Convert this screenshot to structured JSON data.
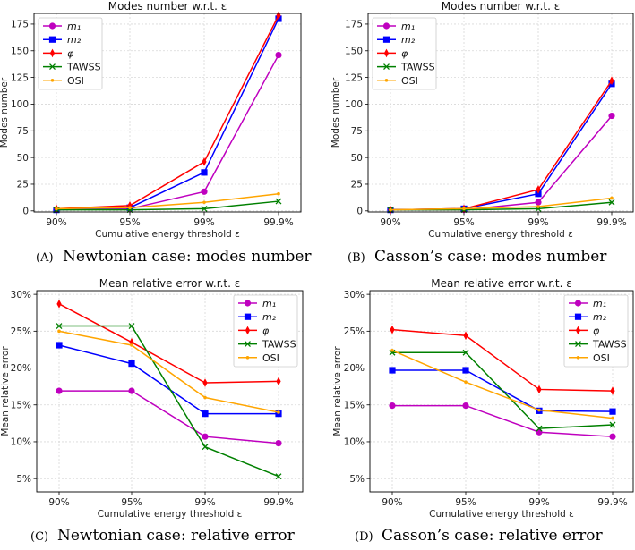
{
  "figure": {
    "panels": [
      {
        "caption_label": "(A)",
        "caption_text": "Newtonian case: modes number"
      },
      {
        "caption_label": "(B)",
        "caption_text": "Casson’s case: modes number"
      },
      {
        "caption_label": "(C)",
        "caption_text": "Newtonian case: relative error"
      },
      {
        "caption_label": "(D)",
        "caption_text": "Casson’s case: relative error"
      }
    ],
    "series_styles": [
      {
        "name": "m₁",
        "color": "#bf00bf",
        "marker": "circle"
      },
      {
        "name": "m₂",
        "color": "#0000ff",
        "marker": "square"
      },
      {
        "name": "φ",
        "color": "#ff0000",
        "marker": "thin-diamond"
      },
      {
        "name": "TAWSS",
        "color": "#008000",
        "marker": "x"
      },
      {
        "name": "OSI",
        "color": "#ffa500",
        "marker": "point"
      }
    ]
  },
  "chart_data": [
    {
      "type": "line",
      "title": "Modes number w.r.t. ε",
      "xlabel": "Cumulative energy threshold ε",
      "ylabel": "Modes number",
      "categories": [
        "90%",
        "95%",
        "99%",
        "99.9%"
      ],
      "yticks": [
        "0",
        "25",
        "50",
        "75",
        "100",
        "125",
        "150",
        "175"
      ],
      "ytick_values": [
        0,
        25,
        50,
        75,
        100,
        125,
        150,
        175
      ],
      "ylim": [
        -1,
        185
      ],
      "grid": true,
      "legend": "upper-left",
      "series": [
        {
          "name": "m₁",
          "values": [
            1,
            2,
            18,
            146
          ]
        },
        {
          "name": "m₂",
          "values": [
            1,
            3,
            36,
            180
          ]
        },
        {
          "name": "φ",
          "values": [
            2,
            5,
            46,
            183
          ]
        },
        {
          "name": "TAWSS",
          "values": [
            1,
            1,
            2,
            9
          ]
        },
        {
          "name": "OSI",
          "values": [
            2,
            3,
            8,
            16
          ]
        }
      ]
    },
    {
      "type": "line",
      "title": "Modes number w.r.t. ε",
      "xlabel": "Cumulative energy threshold ε",
      "ylabel": "Modes number",
      "categories": [
        "90%",
        "95%",
        "99%",
        "99.9%"
      ],
      "yticks": [
        "0",
        "25",
        "50",
        "75",
        "100",
        "125",
        "150",
        "175"
      ],
      "ytick_values": [
        0,
        25,
        50,
        75,
        100,
        125,
        150,
        175
      ],
      "ylim": [
        -1,
        185
      ],
      "grid": true,
      "legend": "upper-left",
      "series": [
        {
          "name": "m₁",
          "values": [
            1,
            1,
            8,
            89
          ]
        },
        {
          "name": "m₂",
          "values": [
            1,
            2,
            16,
            119
          ]
        },
        {
          "name": "φ",
          "values": [
            1,
            2,
            20,
            122
          ]
        },
        {
          "name": "TAWSS",
          "values": [
            1,
            1,
            2,
            8
          ]
        },
        {
          "name": "OSI",
          "values": [
            1,
            2,
            4,
            12
          ]
        }
      ]
    },
    {
      "type": "line",
      "title": "Mean relative error w.r.t. ε",
      "xlabel": "Cumulative energy threshold ε",
      "ylabel": "Mean relative error",
      "categories": [
        "90%",
        "95%",
        "99%",
        "99.9%"
      ],
      "yticks": [
        "5%",
        "10%",
        "15%",
        "20%",
        "25%",
        "30%"
      ],
      "ytick_values": [
        5,
        10,
        15,
        20,
        25,
        30
      ],
      "ylim": [
        3.2,
        30.5
      ],
      "grid": true,
      "legend": "upper-right",
      "series": [
        {
          "name": "m₁",
          "values": [
            16.9,
            16.9,
            10.7,
            9.8
          ]
        },
        {
          "name": "m₂",
          "values": [
            23.1,
            20.6,
            13.8,
            13.8
          ]
        },
        {
          "name": "φ",
          "values": [
            28.7,
            23.5,
            18.0,
            18.2
          ]
        },
        {
          "name": "TAWSS",
          "values": [
            25.7,
            25.7,
            9.3,
            5.3
          ]
        },
        {
          "name": "OSI",
          "values": [
            25.0,
            23.1,
            16.0,
            14.0
          ]
        }
      ]
    },
    {
      "type": "line",
      "title": "Mean relative error w.r.t. ε",
      "xlabel": "Cumulative energy threshold ε",
      "ylabel": "Mean relative error",
      "categories": [
        "90%",
        "95%",
        "99%",
        "99.9%"
      ],
      "yticks": [
        "5%",
        "10%",
        "15%",
        "20%",
        "25%",
        "30%"
      ],
      "ytick_values": [
        5,
        10,
        15,
        20,
        25,
        30
      ],
      "ylim": [
        3.2,
        30.5
      ],
      "grid": true,
      "legend": "upper-right",
      "series": [
        {
          "name": "m₁",
          "values": [
            14.9,
            14.9,
            11.3,
            10.7
          ]
        },
        {
          "name": "m₂",
          "values": [
            19.7,
            19.7,
            14.2,
            14.1
          ]
        },
        {
          "name": "φ",
          "values": [
            25.2,
            24.4,
            17.1,
            16.9
          ]
        },
        {
          "name": "TAWSS",
          "values": [
            22.1,
            22.1,
            11.8,
            12.3
          ]
        },
        {
          "name": "OSI",
          "values": [
            22.4,
            18.1,
            14.3,
            13.2
          ]
        }
      ]
    }
  ]
}
